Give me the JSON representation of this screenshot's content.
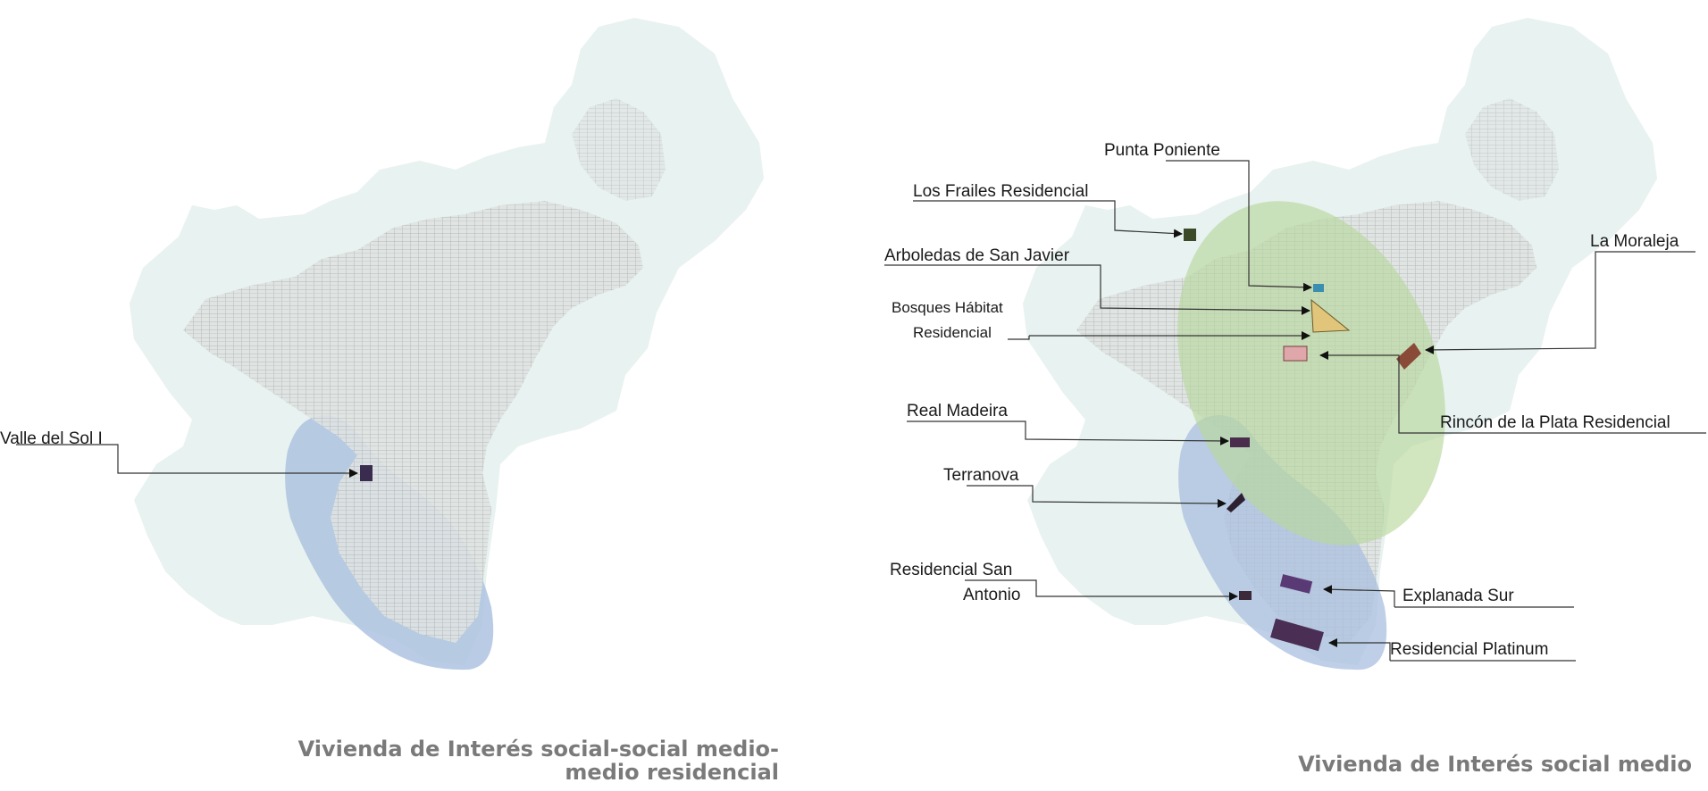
{
  "panels": [
    {
      "id": "left",
      "caption_line1": "Vivienda de Interés social-social medio-",
      "caption_line2": "medio residencial",
      "labels": [
        "Valle del Sol I"
      ]
    },
    {
      "id": "right",
      "caption_line1": "Vivienda de Interés social medio",
      "labels": [
        "Punta Poniente",
        "Los Frailes Residencial",
        "Arboledas de San Javier",
        "Bosques Hábitat",
        "Residencial",
        "Real Madeira",
        "Terranova",
        "Residencial San",
        "Antonio",
        "La Moraleja",
        "Rincón de la Plata Residencial",
        "Explanada Sur",
        "Residencial Platinum"
      ]
    }
  ],
  "colors": {
    "municipality": "#e8f2f0",
    "urban_fabric": "#c9cdcd",
    "blue_zone": "#a9bfdf",
    "green_zone": "#b9d79c",
    "leader_line": "#333333",
    "caption_text": "#7a7a7a"
  },
  "icons": [
    "arrow-marker-icon"
  ]
}
